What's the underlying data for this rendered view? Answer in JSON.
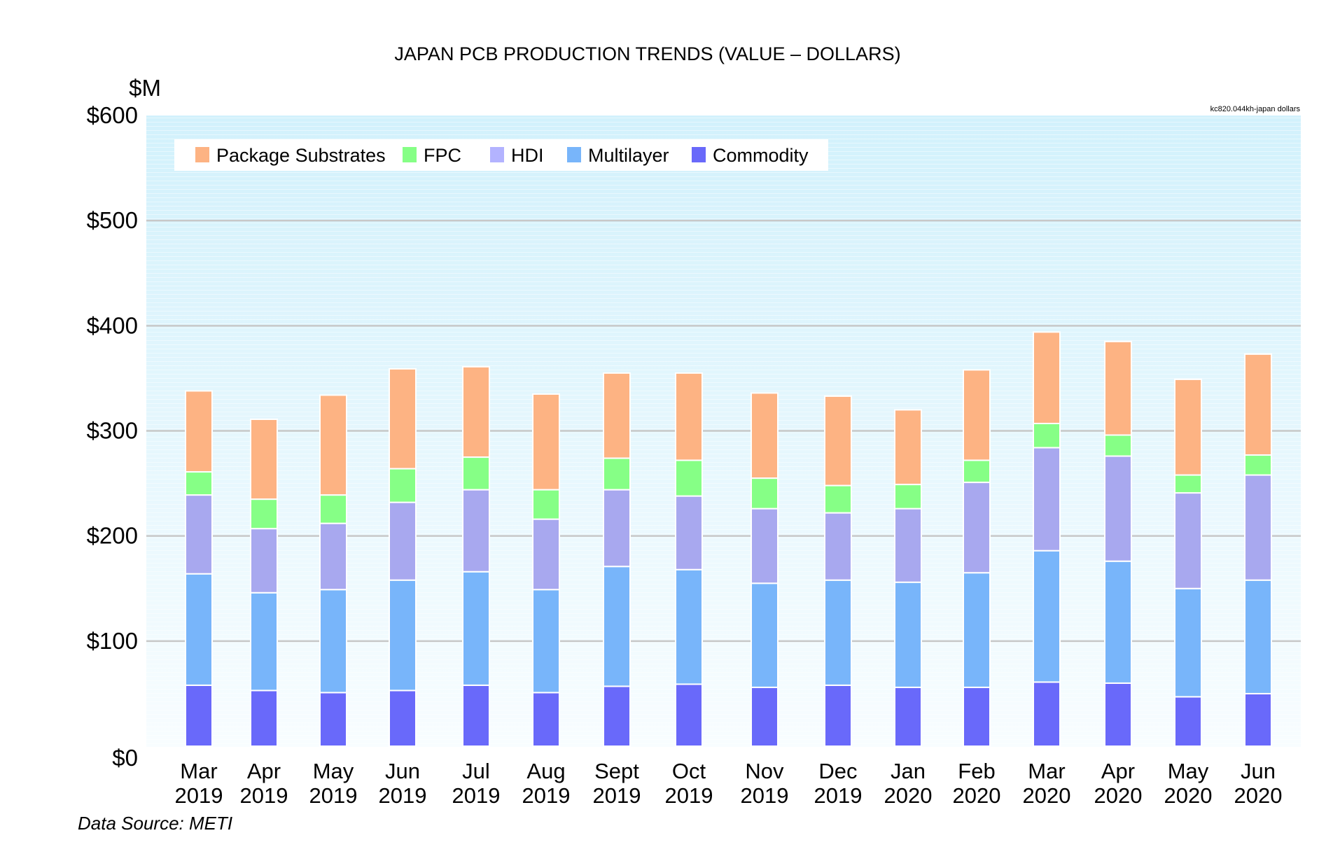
{
  "chart_data": {
    "type": "bar",
    "stacked": true,
    "title": "JAPAN PCB PRODUCTION TRENDS (VALUE – DOLLARS)",
    "ylabel": "$M",
    "xlabel": "",
    "note": "kc820.044kh-japan dollars",
    "source": "Data Source: METI",
    "ylim": [
      0,
      600
    ],
    "yticks": [
      0,
      100,
      200,
      300,
      400,
      500,
      600
    ],
    "ytick_labels": [
      "$0",
      "$100",
      "$200",
      "$300",
      "$400",
      "$500",
      "$600"
    ],
    "grid": true,
    "legend_position": "top-left",
    "categories": [
      [
        "Mar",
        "2019"
      ],
      [
        "Apr",
        "2019"
      ],
      [
        "May",
        "2019"
      ],
      [
        "Jun",
        "2019"
      ],
      [
        "Jul",
        "2019"
      ],
      [
        "Aug",
        "2019"
      ],
      [
        "Sept",
        "2019"
      ],
      [
        "Oct",
        "2019"
      ],
      [
        "Nov",
        "2019"
      ],
      [
        "Dec",
        "2019"
      ],
      [
        "Jan",
        "2020"
      ],
      [
        "Feb",
        "2020"
      ],
      [
        "Mar",
        "2020"
      ],
      [
        "Apr",
        "2020"
      ],
      [
        "May",
        "2020"
      ],
      [
        "Jun",
        "2020"
      ]
    ],
    "series": [
      {
        "name": "Commodity",
        "color": "#6969FA",
        "values": [
          58,
          53,
          51,
          53,
          58,
          51,
          57,
          59,
          56,
          58,
          56,
          56,
          61,
          60,
          47,
          50
        ]
      },
      {
        "name": "Multilayer",
        "color": "#78B5FA",
        "values": [
          106,
          93,
          98,
          105,
          108,
          98,
          114,
          109,
          99,
          100,
          100,
          109,
          125,
          116,
          103,
          108
        ]
      },
      {
        "name": "HDI",
        "color": "#A8A8EF",
        "values": [
          75,
          61,
          63,
          74,
          78,
          67,
          73,
          70,
          71,
          64,
          70,
          86,
          98,
          100,
          91,
          100
        ]
      },
      {
        "name": "FPC",
        "color": "#86FF86",
        "values": [
          22,
          28,
          27,
          32,
          31,
          28,
          30,
          34,
          29,
          26,
          23,
          21,
          23,
          20,
          17,
          19
        ]
      },
      {
        "name": "Package Substrates",
        "color": "#FDB383",
        "values": [
          77,
          76,
          95,
          95,
          86,
          91,
          81,
          83,
          81,
          85,
          71,
          86,
          87,
          89,
          91,
          96
        ]
      }
    ],
    "legend_order": [
      "Package Substrates",
      "FPC",
      "HDI",
      "Multilayer",
      "Commodity"
    ],
    "legend_colors": [
      "#FDB383",
      "#86FF86",
      "#B3B3FF",
      "#78B5FA",
      "#6969FA"
    ]
  }
}
